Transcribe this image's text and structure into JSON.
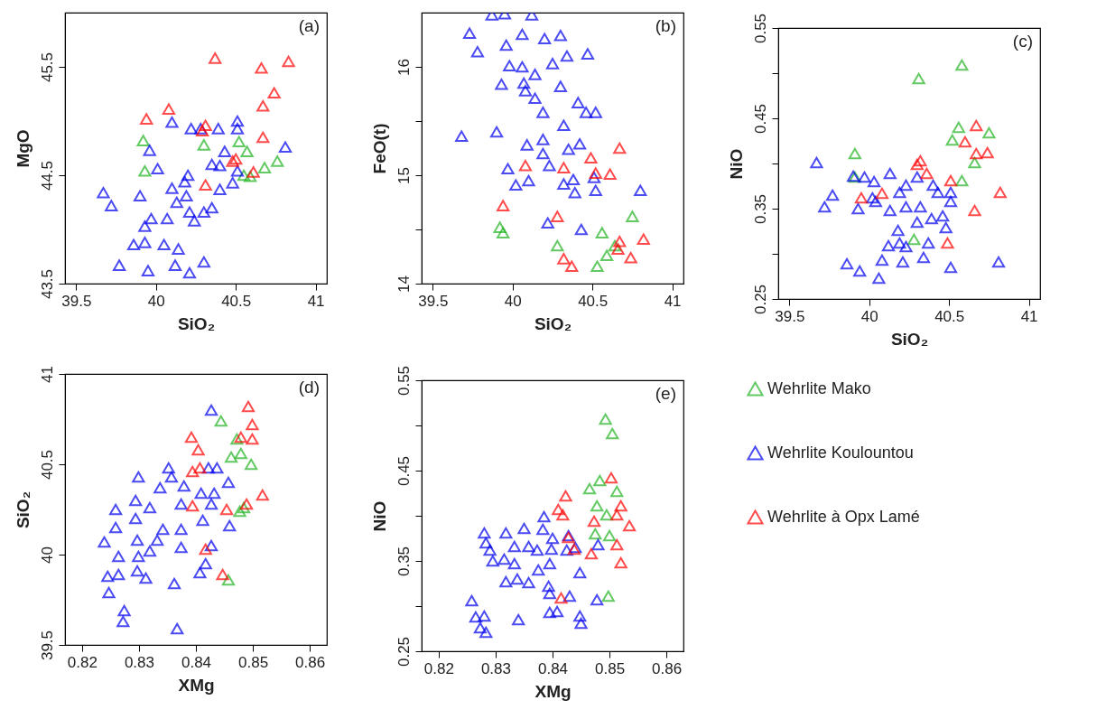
{
  "chart_data": [
    {
      "type": "scatter",
      "xlabel": "SiO₂",
      "ylabel": "MgO",
      "annotations": [
        "(a)"
      ],
      "marker": "triangle",
      "xlim": [
        39.43,
        41.07
      ],
      "ylim": [
        43.5,
        46.0
      ],
      "xticks": [
        39.5,
        40,
        40.5,
        41
      ],
      "yticks": [
        43.5,
        44.5,
        45.5
      ],
      "series": [
        {
          "color": "#22b422",
          "x": [
            39.92,
            39.93,
            40.3,
            40.52,
            40.57,
            40.76,
            40.68,
            40.59,
            40.55
          ],
          "values": [
            44.82,
            44.54,
            44.78,
            44.81,
            44.72,
            44.63,
            44.57,
            44.49,
            44.5
          ]
        },
        {
          "color": "#0000ee",
          "x": [
            40.1,
            40.22,
            40.28,
            40.39,
            40.51,
            40.51,
            40.81,
            39.96,
            40.01,
            40.43,
            40.35,
            40.4,
            40.51,
            40.2,
            40.18,
            40.1,
            40.48,
            40.4,
            39.67,
            39.9,
            39.72,
            40.19,
            40.13,
            40.21,
            40.3,
            40.35,
            40.24,
            40.07,
            39.97,
            39.93,
            39.86,
            39.93,
            40.05,
            40.14,
            39.77,
            39.95,
            40.12,
            40.3,
            40.21
          ],
          "values": [
            44.99,
            44.93,
            44.93,
            44.93,
            45.0,
            44.93,
            44.76,
            44.73,
            44.56,
            44.72,
            44.6,
            44.59,
            44.54,
            44.5,
            44.44,
            44.38,
            44.43,
            44.37,
            44.34,
            44.31,
            44.22,
            44.31,
            44.25,
            44.16,
            44.16,
            44.2,
            44.08,
            44.1,
            44.1,
            44.03,
            43.86,
            43.88,
            43.86,
            43.82,
            43.67,
            43.62,
            43.67,
            43.7,
            43.6
          ]
        },
        {
          "color": "#ff0000",
          "x": [
            40.37,
            40.66,
            40.83,
            40.74,
            40.67,
            40.08,
            39.94,
            40.31,
            40.29,
            40.67,
            40.5,
            40.48,
            40.61,
            40.31
          ],
          "values": [
            45.58,
            45.49,
            45.55,
            45.26,
            45.14,
            45.11,
            45.02,
            44.96,
            44.91,
            44.85,
            44.65,
            44.63,
            44.53,
            44.41
          ]
        }
      ]
    },
    {
      "type": "scatter",
      "xlabel": "SiO₂",
      "ylabel": "FeO(t)",
      "annotations": [
        "(b)"
      ],
      "marker": "triangle",
      "xlim": [
        39.43,
        41.07
      ],
      "ylim": [
        14.0,
        16.5
      ],
      "xticks": [
        39.5,
        40,
        40.5,
        41
      ],
      "yticks": [
        14,
        {
          "value": 14.5,
          "label": null
        },
        15,
        {
          "value": 15.5,
          "label": null
        },
        16
      ],
      "series": [
        {
          "color": "#22b422",
          "x": [
            39.92,
            39.94,
            40.28,
            40.75,
            40.56,
            40.64,
            40.59,
            40.53
          ],
          "values": [
            14.52,
            14.47,
            14.35,
            14.62,
            14.47,
            14.35,
            14.26,
            14.16
          ]
        },
        {
          "color": "#0000ee",
          "x": [
            39.87,
            39.95,
            40.12,
            39.73,
            40.06,
            40.2,
            40.3,
            39.78,
            39.96,
            40.34,
            40.47,
            39.98,
            40.06,
            40.25,
            40.14,
            39.93,
            40.07,
            40.08,
            40.3,
            40.14,
            40.41,
            40.19,
            40.46,
            40.52,
            40.32,
            39.68,
            39.9,
            40.09,
            40.19,
            40.19,
            40.35,
            40.42,
            39.97,
            40.23,
            40.02,
            40.1,
            40.32,
            40.38,
            40.39,
            40.51,
            40.52,
            40.8,
            40.22,
            40.43
          ],
          "values": [
            16.48,
            16.49,
            16.48,
            16.31,
            16.3,
            16.26,
            16.29,
            16.14,
            16.2,
            16.1,
            16.12,
            16.01,
            16.0,
            16.03,
            15.93,
            15.84,
            15.85,
            15.78,
            15.82,
            15.71,
            15.67,
            15.58,
            15.58,
            15.58,
            15.46,
            15.36,
            15.4,
            15.28,
            15.33,
            15.2,
            15.24,
            15.29,
            15.06,
            15.09,
            14.91,
            14.95,
            14.92,
            14.96,
            14.84,
            14.98,
            14.86,
            14.86,
            14.56,
            14.5
          ]
        },
        {
          "color": "#ff0000",
          "x": [
            40.67,
            40.49,
            40.08,
            40.32,
            40.52,
            40.61,
            39.94,
            40.28,
            40.67,
            40.82,
            40.66,
            40.74,
            40.32,
            40.37
          ],
          "values": [
            15.25,
            15.16,
            15.09,
            15.07,
            15.02,
            15.01,
            14.72,
            14.62,
            14.39,
            14.41,
            14.32,
            14.24,
            14.23,
            14.16
          ]
        }
      ]
    },
    {
      "type": "scatter",
      "xlabel": "SiO₂",
      "ylabel": "NiO",
      "annotations": [
        "(c)"
      ],
      "marker": "triangle",
      "xlim": [
        39.43,
        41.07
      ],
      "ylim": [
        0.25,
        0.55
      ],
      "xticks": [
        39.5,
        40,
        40.5,
        41
      ],
      "yticks": [
        0.25,
        {
          "value": 0.3,
          "label": null
        },
        0.35,
        {
          "value": 0.4,
          "label": null
        },
        0.45,
        {
          "value": 0.5,
          "label": null
        },
        0.55
      ],
      "series": [
        {
          "color": "#22b422",
          "x": [
            39.91,
            40.31,
            40.58,
            40.56,
            40.52,
            40.75,
            40.66,
            40.58,
            40.28,
            39.91
          ],
          "values": [
            0.411,
            0.494,
            0.509,
            0.44,
            0.426,
            0.434,
            0.401,
            0.381,
            0.316,
            0.385
          ]
        },
        {
          "color": "#0000ee",
          "x": [
            39.67,
            39.9,
            39.97,
            40.03,
            40.13,
            39.77,
            39.72,
            39.93,
            40.04,
            40.13,
            40.19,
            40.23,
            40.23,
            40.3,
            40.32,
            40.3,
            40.39,
            40.4,
            40.43,
            40.46,
            40.48,
            40.51,
            40.51,
            40.18,
            40.19,
            40.12,
            40.37,
            40.23,
            40.34,
            40.08,
            39.86,
            39.94,
            40.06,
            40.21,
            40.51,
            40.81,
            40.02
          ],
          "values": [
            0.401,
            0.386,
            0.385,
            0.38,
            0.389,
            0.365,
            0.352,
            0.35,
            0.358,
            0.348,
            0.368,
            0.376,
            0.352,
            0.385,
            0.352,
            0.335,
            0.339,
            0.376,
            0.368,
            0.342,
            0.329,
            0.368,
            0.358,
            0.326,
            0.312,
            0.309,
            0.312,
            0.308,
            0.296,
            0.293,
            0.289,
            0.281,
            0.273,
            0.291,
            0.285,
            0.291,
            0.362
          ]
        },
        {
          "color": "#ff0000",
          "x": [
            39.95,
            40.08,
            40.3,
            40.32,
            40.36,
            40.51,
            40.67,
            40.6,
            40.67,
            40.74,
            40.82,
            40.66,
            40.49
          ],
          "values": [
            0.362,
            0.367,
            0.399,
            0.403,
            0.389,
            0.381,
            0.442,
            0.424,
            0.411,
            0.412,
            0.368,
            0.348,
            0.312
          ]
        }
      ]
    },
    {
      "type": "scatter",
      "xlabel": "XMg",
      "ylabel": "SiO₂",
      "annotations": [
        "(d)"
      ],
      "marker": "triangle",
      "xlim": [
        0.817,
        0.863
      ],
      "ylim": [
        39.5,
        41.0
      ],
      "xticks": [
        0.82,
        0.83,
        0.84,
        0.85,
        0.86
      ],
      "yticks": [
        39.5,
        40,
        40.5,
        41
      ],
      "series": [
        {
          "color": "#22b422",
          "x": [
            0.8444,
            0.8472,
            0.8462,
            0.8479,
            0.8497,
            0.8484,
            0.8477,
            0.8457
          ],
          "values": [
            40.74,
            40.64,
            40.54,
            40.56,
            40.5,
            40.26,
            40.24,
            39.86
          ]
        },
        {
          "color": "#0000ee",
          "x": [
            0.8427,
            0.8352,
            0.8357,
            0.8299,
            0.8337,
            0.8379,
            0.8409,
            0.8432,
            0.8457,
            0.8422,
            0.8437,
            0.8294,
            0.8319,
            0.8259,
            0.8374,
            0.8427,
            0.8294,
            0.8259,
            0.8342,
            0.8374,
            0.8412,
            0.8459,
            0.8239,
            0.8297,
            0.8332,
            0.8374,
            0.8264,
            0.8299,
            0.8319,
            0.8427,
            0.8417,
            0.8407,
            0.8297,
            0.8312,
            0.8245,
            0.8264,
            0.8362,
            0.8247,
            0.8274,
            0.8272,
            0.8367
          ],
          "values": [
            40.8,
            40.48,
            40.43,
            40.43,
            40.37,
            40.38,
            40.34,
            40.34,
            40.4,
            40.48,
            40.48,
            40.3,
            40.26,
            40.25,
            40.28,
            40.28,
            40.2,
            40.15,
            40.14,
            40.14,
            40.19,
            40.16,
            40.07,
            40.08,
            40.08,
            40.04,
            39.99,
            39.99,
            40.02,
            40.05,
            39.95,
            39.9,
            39.91,
            39.87,
            39.88,
            39.89,
            39.84,
            39.79,
            39.69,
            39.63,
            39.59
          ]
        },
        {
          "color": "#ff0000",
          "x": [
            0.8492,
            0.8499,
            0.8479,
            0.8499,
            0.8392,
            0.8404,
            0.8407,
            0.8394,
            0.8394,
            0.8454,
            0.8489,
            0.8517,
            0.8417,
            0.8447
          ],
          "values": [
            40.82,
            40.72,
            40.65,
            40.64,
            40.65,
            40.58,
            40.48,
            40.46,
            40.27,
            40.25,
            40.28,
            40.33,
            40.03,
            39.89
          ]
        }
      ]
    },
    {
      "type": "scatter",
      "xlabel": "XMg",
      "ylabel": "NiO",
      "annotations": [
        "(e)"
      ],
      "marker": "triangle",
      "legend": "right",
      "xlim": [
        0.817,
        0.863
      ],
      "ylim": [
        0.25,
        0.55
      ],
      "xticks": [
        0.82,
        0.83,
        0.84,
        0.85,
        0.86
      ],
      "yticks": [
        0.25,
        {
          "value": 0.3,
          "label": null
        },
        0.35,
        {
          "value": 0.4,
          "label": null
        },
        0.45,
        {
          "value": 0.5,
          "label": null
        },
        0.55
      ],
      "series": [
        {
          "name": "Wehrlite Mako",
          "color": "#22b422",
          "x": [
            0.8493,
            0.8505,
            0.8465,
            0.8483,
            0.8513,
            0.8478,
            0.8495,
            0.8475,
            0.85,
            0.8498
          ],
          "values": [
            0.507,
            0.491,
            0.43,
            0.439,
            0.427,
            0.411,
            0.401,
            0.38,
            0.378,
            0.311
          ]
        },
        {
          "name": "Wehrlite Koulountou",
          "color": "#0000ee",
          "x": [
            0.828,
            0.8318,
            0.835,
            0.8385,
            0.8383,
            0.84,
            0.8283,
            0.829,
            0.8333,
            0.8358,
            0.8373,
            0.8398,
            0.8295,
            0.8315,
            0.8333,
            0.8375,
            0.8395,
            0.8318,
            0.8338,
            0.8358,
            0.8393,
            0.8395,
            0.8258,
            0.8265,
            0.828,
            0.8273,
            0.8283,
            0.834,
            0.8395,
            0.8408,
            0.843,
            0.8448,
            0.8448,
            0.845,
            0.8478,
            0.848,
            0.8428,
            0.8425,
            0.844
          ],
          "values": [
            0.381,
            0.381,
            0.386,
            0.399,
            0.385,
            0.375,
            0.37,
            0.362,
            0.366,
            0.366,
            0.362,
            0.363,
            0.35,
            0.352,
            0.347,
            0.34,
            0.347,
            0.327,
            0.33,
            0.326,
            0.322,
            0.314,
            0.306,
            0.288,
            0.289,
            0.276,
            0.271,
            0.285,
            0.293,
            0.294,
            0.311,
            0.337,
            0.289,
            0.281,
            0.307,
            0.368,
            0.378,
            0.362,
            0.365
          ]
        },
        {
          "name": "Wehrlite à Opx Lamé",
          "color": "#ff0000",
          "x": [
            0.8423,
            0.841,
            0.8418,
            0.8428,
            0.8438,
            0.8468,
            0.8503,
            0.8473,
            0.852,
            0.8513,
            0.8535,
            0.8513,
            0.852,
            0.8415
          ],
          "values": [
            0.422,
            0.407,
            0.401,
            0.376,
            0.363,
            0.358,
            0.442,
            0.394,
            0.411,
            0.401,
            0.389,
            0.368,
            0.348,
            0.309
          ]
        }
      ]
    }
  ]
}
